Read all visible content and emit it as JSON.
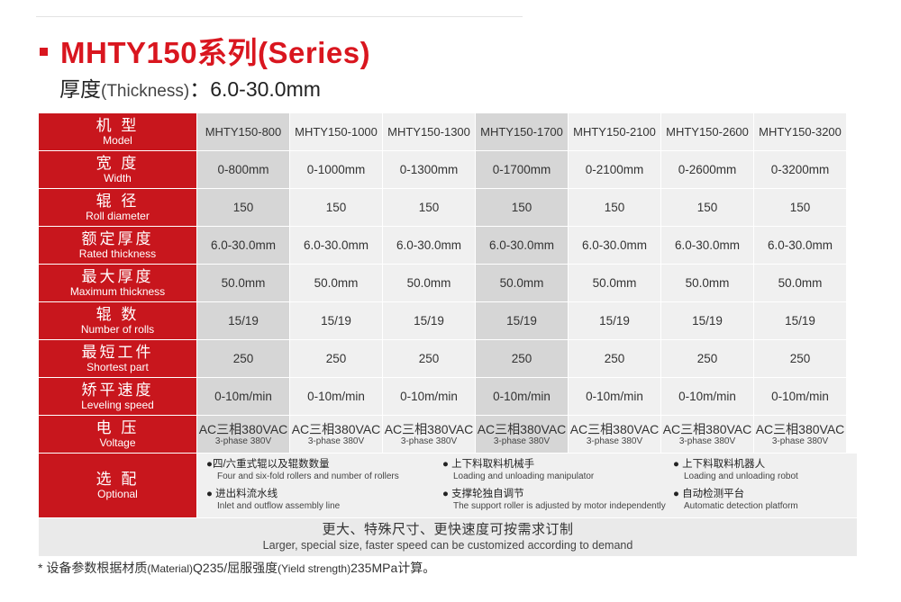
{
  "title": "MHTY150系列(Series)",
  "subtitle": {
    "cn": "厚度",
    "en": "(Thickness)",
    "value": "：6.0-30.0mm"
  },
  "rows": [
    {
      "cn": "机 型",
      "en": "Model",
      "values": [
        "MHTY150-800",
        "MHTY150-1000",
        "MHTY150-1300",
        "MHTY150-1700",
        "MHTY150-2100",
        "MHTY150-2600",
        "MHTY150-3200"
      ]
    },
    {
      "cn": "宽 度",
      "en": "Width",
      "values": [
        "0-800mm",
        "0-1000mm",
        "0-1300mm",
        "0-1700mm",
        "0-2100mm",
        "0-2600mm",
        "0-3200mm"
      ]
    },
    {
      "cn": "辊 径",
      "en": "Roll diameter",
      "values": [
        "150",
        "150",
        "150",
        "150",
        "150",
        "150",
        "150"
      ]
    },
    {
      "cn": "额定厚度",
      "en": "Rated thickness",
      "values": [
        "6.0-30.0mm",
        "6.0-30.0mm",
        "6.0-30.0mm",
        "6.0-30.0mm",
        "6.0-30.0mm",
        "6.0-30.0mm",
        "6.0-30.0mm"
      ]
    },
    {
      "cn": "最大厚度",
      "en": "Maximum thickness",
      "values": [
        "50.0mm",
        "50.0mm",
        "50.0mm",
        "50.0mm",
        "50.0mm",
        "50.0mm",
        "50.0mm"
      ]
    },
    {
      "cn": "辊 数",
      "en": "Number of rolls",
      "values": [
        "15/19",
        "15/19",
        "15/19",
        "15/19",
        "15/19",
        "15/19",
        "15/19"
      ]
    },
    {
      "cn": "最短工件",
      "en": "Shortest part",
      "values": [
        "250",
        "250",
        "250",
        "250",
        "250",
        "250",
        "250"
      ]
    },
    {
      "cn": "矫平速度",
      "en": "Leveling speed",
      "values": [
        "0-10m/min",
        "0-10m/min",
        "0-10m/min",
        "0-10m/min",
        "0-10m/min",
        "0-10m/min",
        "0-10m/min"
      ]
    }
  ],
  "voltage": {
    "cn": "电 压",
    "en": "Voltage",
    "value_cn": "AC三相380VAC",
    "value_en": "3-phase 380V"
  },
  "optional": {
    "cn": "选 配",
    "en": "Optional",
    "items": [
      {
        "cn": "●四/六重式辊以及辊数数量",
        "en": "Four and six-fold rollers and number of rollers"
      },
      {
        "cn": "● 上下料取料机械手",
        "en": "Loading and unloading manipulator"
      },
      {
        "cn": "● 上下料取料机器人",
        "en": "Loading and unloading robot"
      },
      {
        "cn": "● 进出料流水线",
        "en": "Inlet and outflow assembly line"
      },
      {
        "cn": "● 支撑轮独自调节",
        "en": "The support roller is adjusted by motor independently"
      },
      {
        "cn": "● 自动检测平台",
        "en": "Automatic detection platform"
      }
    ]
  },
  "footer": {
    "cn": "更大、特殊尺寸、更快速度可按需求订制",
    "en": "Larger, special size, faster speed can be customized according to demand"
  },
  "note": {
    "a": "* 设备参数根据材质",
    "b": "(Material)",
    "c": "Q235/屈服强度",
    "d": "(Yield strength)",
    "e": "235MPa计算。"
  }
}
